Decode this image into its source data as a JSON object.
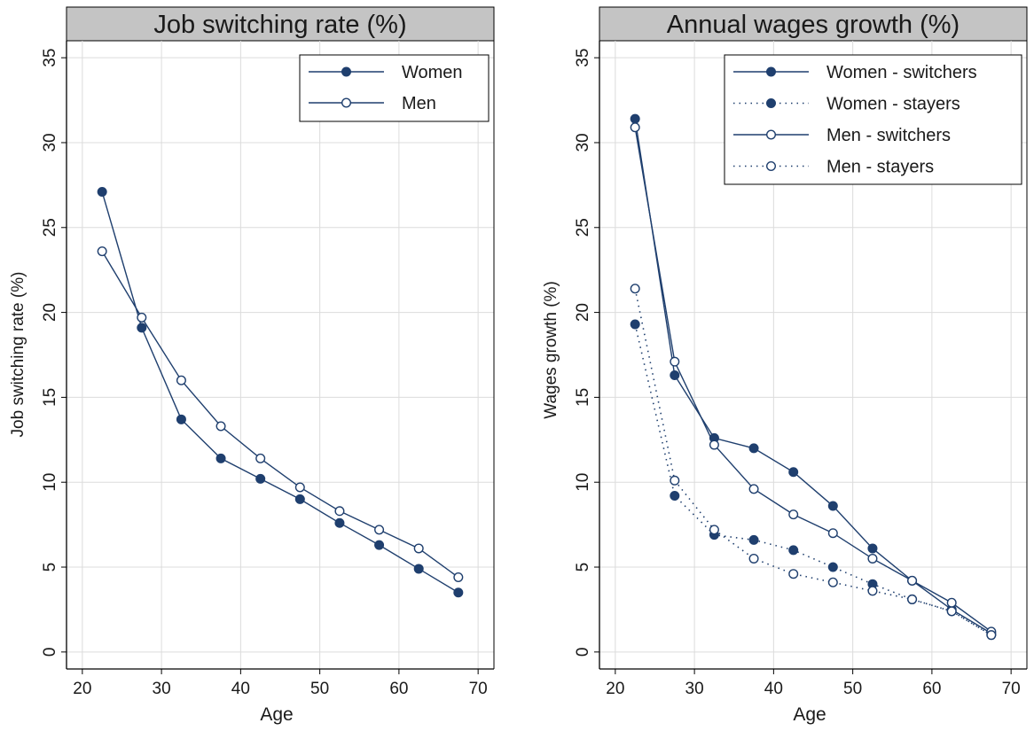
{
  "colors": {
    "series": "#1f3f6e",
    "title_bar": "#c4c4c4",
    "grid": "#dcdcdc",
    "frame": "#000000",
    "background": "#ffffff"
  },
  "chart_data": [
    {
      "type": "line",
      "title": "Job switching rate (%)",
      "xlabel": "Age",
      "ylabel": "Job switching rate (%)",
      "xlim": [
        18,
        72
      ],
      "ylim": [
        -1,
        36
      ],
      "xticks": [
        20,
        30,
        40,
        50,
        60,
        70
      ],
      "yticks": [
        0,
        5,
        10,
        15,
        20,
        25,
        30,
        35
      ],
      "grid": true,
      "legend_position": "top-right",
      "x": [
        22.5,
        27.5,
        32.5,
        37.5,
        42.5,
        47.5,
        52.5,
        57.5,
        62.5,
        67.5
      ],
      "series": [
        {
          "name": "Women",
          "marker": "filled",
          "style": "solid",
          "values": [
            27.1,
            19.1,
            13.7,
            11.4,
            10.2,
            9.0,
            7.6,
            6.3,
            4.9,
            3.5
          ]
        },
        {
          "name": "Men",
          "marker": "hollow",
          "style": "solid",
          "values": [
            23.6,
            19.7,
            16.0,
            13.3,
            11.4,
            9.7,
            8.3,
            7.2,
            6.1,
            4.4
          ]
        }
      ]
    },
    {
      "type": "line",
      "title": "Annual wages growth (%)",
      "xlabel": "Age",
      "ylabel": "Wages growth (%)",
      "xlim": [
        18,
        72
      ],
      "ylim": [
        -1,
        36
      ],
      "xticks": [
        20,
        30,
        40,
        50,
        60,
        70
      ],
      "yticks": [
        0,
        5,
        10,
        15,
        20,
        25,
        30,
        35
      ],
      "grid": true,
      "legend_position": "top-right",
      "x": [
        22.5,
        27.5,
        32.5,
        37.5,
        42.5,
        47.5,
        52.5,
        57.5,
        62.5,
        67.5
      ],
      "series": [
        {
          "name": "Women - switchers",
          "marker": "filled",
          "style": "solid",
          "values": [
            31.4,
            16.3,
            12.6,
            12.0,
            10.6,
            8.6,
            6.1,
            4.2,
            2.5,
            1.1
          ]
        },
        {
          "name": "Women - stayers",
          "marker": "filled",
          "style": "dotted",
          "values": [
            19.3,
            9.2,
            6.9,
            6.6,
            6.0,
            5.0,
            4.0,
            3.1,
            2.4,
            1.0
          ]
        },
        {
          "name": "Men - switchers",
          "marker": "hollow",
          "style": "solid",
          "values": [
            30.9,
            17.1,
            12.2,
            9.6,
            8.1,
            7.0,
            5.5,
            4.2,
            2.9,
            1.2
          ]
        },
        {
          "name": "Men - stayers",
          "marker": "hollow",
          "style": "dotted",
          "values": [
            21.4,
            10.1,
            7.2,
            5.5,
            4.6,
            4.1,
            3.6,
            3.1,
            2.4,
            1.0
          ]
        }
      ]
    }
  ]
}
